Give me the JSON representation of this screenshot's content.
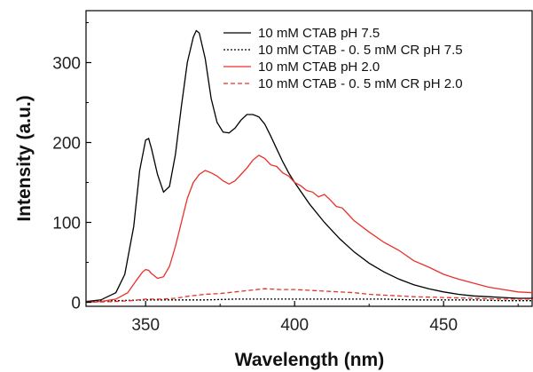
{
  "chart_data": {
    "type": "line",
    "title": "",
    "xlabel": "Wavelength (nm)",
    "ylabel": "Intensity (a.u.)",
    "xlim": [
      330,
      480
    ],
    "ylim": [
      -5,
      365
    ],
    "xticks": [
      350,
      400,
      450
    ],
    "yticks": [
      0,
      100,
      200,
      300
    ],
    "grid": false,
    "legend_position": "top-right",
    "series": [
      {
        "name": "10 mM CTAB pH 7.5",
        "color": "#000000",
        "dash": "solid",
        "x": [
          330,
          335,
          340,
          343,
          346,
          348,
          350,
          351,
          352,
          354,
          356,
          358,
          360,
          362,
          364,
          366,
          367,
          368,
          370,
          372,
          374,
          376,
          378,
          380,
          382,
          384,
          386,
          388,
          390,
          392,
          394,
          396,
          398,
          400,
          405,
          410,
          415,
          420,
          425,
          430,
          435,
          440,
          445,
          450,
          455,
          460,
          465,
          470,
          475,
          480
        ],
        "y": [
          1,
          3,
          12,
          35,
          95,
          165,
          203,
          205,
          192,
          160,
          138,
          145,
          185,
          245,
          300,
          332,
          340,
          337,
          305,
          255,
          225,
          213,
          212,
          218,
          228,
          235,
          235,
          232,
          223,
          208,
          192,
          176,
          162,
          150,
          123,
          100,
          80,
          63,
          49,
          38,
          29,
          22,
          17,
          13,
          10,
          8,
          7,
          6,
          5,
          5
        ]
      },
      {
        "name": "10 mM CTAB - 0. 5 mM CR pH 7.5",
        "color": "#000000",
        "dash": "dotted",
        "x": [
          330,
          340,
          350,
          360,
          370,
          380,
          390,
          400,
          410,
          420,
          430,
          440,
          450,
          460,
          470,
          480
        ],
        "y": [
          1,
          2,
          3,
          3,
          3,
          4,
          4,
          4,
          4,
          4,
          4,
          3,
          3,
          3,
          2,
          2
        ]
      },
      {
        "name": "10 mM CTAB pH 2.0",
        "color": "#e8312a",
        "dash": "solid",
        "x": [
          330,
          335,
          340,
          344,
          347,
          349,
          350,
          351,
          352,
          354,
          356,
          358,
          360,
          362,
          364,
          366,
          368,
          370,
          372,
          374,
          376,
          378,
          380,
          382,
          384,
          386,
          388,
          390,
          392,
          394,
          396,
          398,
          400,
          402,
          404,
          406,
          408,
          410,
          412,
          414,
          416,
          418,
          420,
          425,
          430,
          435,
          440,
          445,
          450,
          455,
          460,
          465,
          470,
          475,
          480
        ],
        "y": [
          0,
          1,
          4,
          12,
          28,
          38,
          41,
          40,
          36,
          30,
          32,
          45,
          70,
          100,
          130,
          150,
          160,
          165,
          162,
          158,
          152,
          148,
          152,
          160,
          168,
          178,
          184,
          180,
          172,
          170,
          162,
          158,
          150,
          146,
          140,
          138,
          132,
          135,
          128,
          120,
          118,
          110,
          102,
          88,
          75,
          65,
          52,
          44,
          35,
          29,
          24,
          19,
          16,
          13,
          12
        ]
      },
      {
        "name": "10 mM CTAB - 0. 5 mM CR pH 2.0",
        "color": "#e8312a",
        "dash": "dashed",
        "x": [
          330,
          340,
          345,
          350,
          355,
          360,
          365,
          370,
          375,
          380,
          385,
          390,
          395,
          400,
          405,
          410,
          415,
          420,
          425,
          430,
          440,
          450,
          460,
          470,
          480
        ],
        "y": [
          0,
          1,
          2,
          4,
          4,
          5,
          8,
          10,
          11,
          13,
          15,
          17,
          16,
          16,
          15,
          14,
          13,
          12,
          10,
          9,
          7,
          6,
          5,
          4,
          4
        ]
      }
    ]
  }
}
